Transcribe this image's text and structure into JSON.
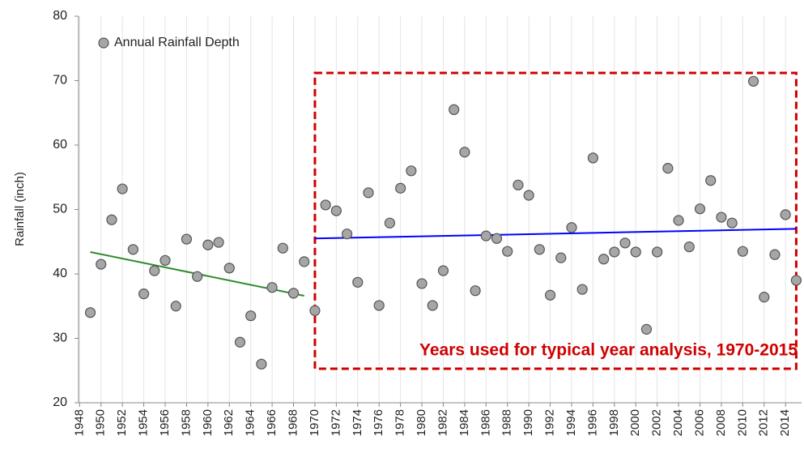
{
  "chart_data": {
    "type": "scatter",
    "y_label": "Rainfall (inch)",
    "series": [
      {
        "name": "Annual Rainfall Depth",
        "color": "#a6a6a6",
        "x": [
          1949,
          1950,
          1951,
          1952,
          1953,
          1954,
          1955,
          1956,
          1957,
          1958,
          1959,
          1960,
          1961,
          1962,
          1963,
          1964,
          1965,
          1966,
          1967,
          1968,
          1969,
          1970,
          1971,
          1972,
          1973,
          1974,
          1975,
          1976,
          1977,
          1978,
          1979,
          1980,
          1981,
          1982,
          1983,
          1984,
          1985,
          1986,
          1987,
          1988,
          1989,
          1990,
          1991,
          1992,
          1993,
          1994,
          1995,
          1996,
          1997,
          1998,
          1999,
          2000,
          2001,
          2002,
          2003,
          2004,
          2005,
          2006,
          2007,
          2008,
          2009,
          2010,
          2011,
          2012,
          2013,
          2014,
          2015
        ],
        "values": [
          34.0,
          41.5,
          48.4,
          53.2,
          43.8,
          36.9,
          40.5,
          42.1,
          35.0,
          45.4,
          39.6,
          44.5,
          44.9,
          40.9,
          29.4,
          33.5,
          26.0,
          37.9,
          44.0,
          37.0,
          41.9,
          34.3,
          50.7,
          49.8,
          46.2,
          38.7,
          52.6,
          35.1,
          47.9,
          53.3,
          56.0,
          38.5,
          35.1,
          40.5,
          65.5,
          58.9,
          37.4,
          45.9,
          45.5,
          43.5,
          53.8,
          52.2,
          43.8,
          36.7,
          42.5,
          47.2,
          37.6,
          58.0,
          42.3,
          43.4,
          44.8,
          43.4,
          31.4,
          43.4,
          56.4,
          48.3,
          44.2,
          50.1,
          54.5,
          48.8,
          47.9,
          43.5,
          69.9,
          36.4,
          43.0,
          49.2,
          39.0
        ]
      }
    ],
    "trendlines": [
      {
        "color": "#2e8b2e",
        "x": [
          1949,
          1969
        ],
        "y": [
          43.4,
          36.6
        ]
      },
      {
        "color": "#0000ff",
        "x": [
          1970,
          2015
        ],
        "y": [
          45.5,
          47.0
        ]
      }
    ],
    "highlight": {
      "x": [
        1970,
        2015
      ],
      "label": "Years used for typical year analysis, 1970-2015",
      "color": "#d00000"
    },
    "xlim": [
      1947.9,
      2015.5
    ],
    "xticks": [
      1948,
      1950,
      1952,
      1954,
      1956,
      1958,
      1960,
      1962,
      1964,
      1966,
      1968,
      1970,
      1972,
      1974,
      1976,
      1978,
      1980,
      1982,
      1984,
      1986,
      1988,
      1990,
      1992,
      1994,
      1996,
      1998,
      2000,
      2002,
      2004,
      2006,
      2008,
      2010,
      2012,
      2014
    ],
    "ylim": [
      20,
      80
    ],
    "yticks": [
      20,
      30,
      40,
      50,
      60,
      70,
      80
    ],
    "grid": true,
    "legend": "upper left"
  }
}
